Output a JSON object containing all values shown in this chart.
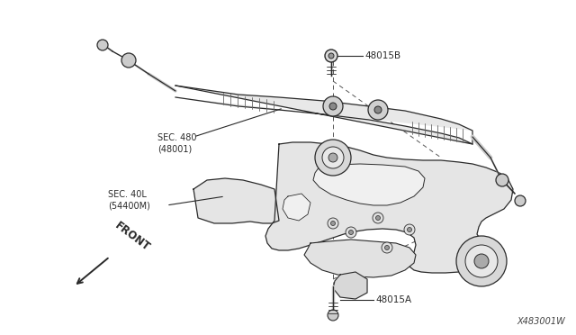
{
  "background_color": "#ffffff",
  "line_color": "#2a2a2a",
  "text_color": "#2a2a2a",
  "figsize": [
    6.4,
    3.72
  ],
  "dpi": 100,
  "watermark": "X483001W",
  "label_48015B": "48015B",
  "label_SEC480": "SEC. 480\n(48001)",
  "label_SEC40L": "SEC. 40L\n(54400M)",
  "label_48015A": "48015A",
  "label_FRONT": "FRONT"
}
